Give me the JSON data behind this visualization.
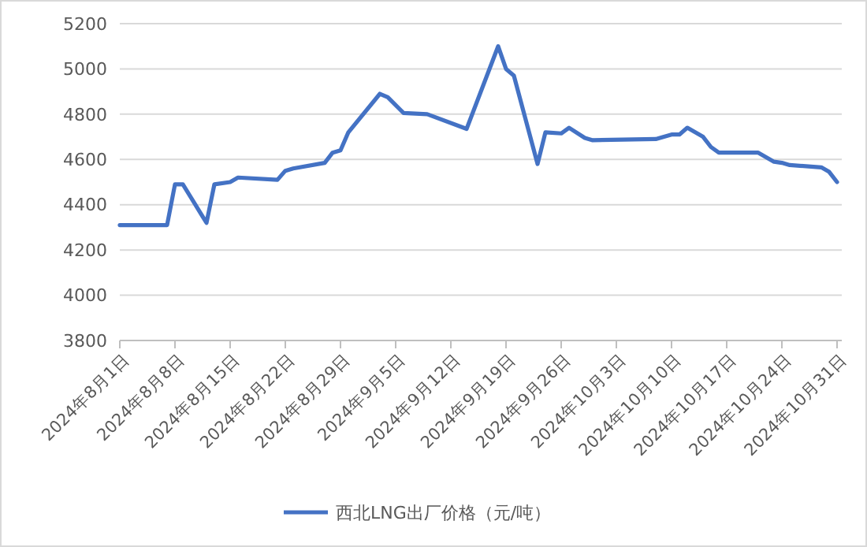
{
  "chart_data": {
    "type": "line",
    "x": [
      "2024-08-01",
      "2024-08-07",
      "2024-08-08",
      "2024-08-09",
      "2024-08-12",
      "2024-08-13",
      "2024-08-15",
      "2024-08-16",
      "2024-08-21",
      "2024-08-22",
      "2024-08-23",
      "2024-08-27",
      "2024-08-28",
      "2024-08-29",
      "2024-08-30",
      "2024-09-03",
      "2024-09-04",
      "2024-09-06",
      "2024-09-09",
      "2024-09-14",
      "2024-09-18",
      "2024-09-19",
      "2024-09-20",
      "2024-09-23",
      "2024-09-24",
      "2024-09-26",
      "2024-09-27",
      "2024-09-29",
      "2024-09-30",
      "2024-10-08",
      "2024-10-10",
      "2024-10-11",
      "2024-10-12",
      "2024-10-14",
      "2024-10-15",
      "2024-10-16",
      "2024-10-21",
      "2024-10-23",
      "2024-10-24",
      "2024-10-25",
      "2024-10-29",
      "2024-10-30",
      "2024-10-31"
    ],
    "series": [
      {
        "name": "西北LNG出厂价格（元/吨）",
        "color": "#4472c4",
        "values": [
          4310,
          4310,
          4490,
          4490,
          4320,
          4490,
          4500,
          4520,
          4510,
          4550,
          4560,
          4585,
          4630,
          4640,
          4720,
          4890,
          4875,
          4805,
          4800,
          4735,
          5100,
          5000,
          4970,
          4580,
          4720,
          4715,
          4740,
          4695,
          4685,
          4690,
          4710,
          4710,
          4740,
          4700,
          4655,
          4630,
          4630,
          4590,
          4585,
          4575,
          4565,
          4545,
          4500
        ]
      }
    ],
    "xlim": [
      "2024-08-01",
      "2024-10-31"
    ],
    "xticks": [
      {
        "value": "2024-08-01",
        "label": "2024年8月1日"
      },
      {
        "value": "2024-08-08",
        "label": "2024年8月8日"
      },
      {
        "value": "2024-08-15",
        "label": "2024年8月15日"
      },
      {
        "value": "2024-08-22",
        "label": "2024年8月22日"
      },
      {
        "value": "2024-08-29",
        "label": "2024年8月29日"
      },
      {
        "value": "2024-09-05",
        "label": "2024年9月5日"
      },
      {
        "value": "2024-09-12",
        "label": "2024年9月12日"
      },
      {
        "value": "2024-09-19",
        "label": "2024年9月19日"
      },
      {
        "value": "2024-09-26",
        "label": "2024年9月26日"
      },
      {
        "value": "2024-10-03",
        "label": "2024年10月3日"
      },
      {
        "value": "2024-10-10",
        "label": "2024年10月10日"
      },
      {
        "value": "2024-10-17",
        "label": "2024年10月17日"
      },
      {
        "value": "2024-10-24",
        "label": "2024年10月24日"
      },
      {
        "value": "2024-10-31",
        "label": "2024年10月31日"
      }
    ],
    "ylim": [
      3800,
      5200
    ],
    "yticks": [
      3800,
      4000,
      4200,
      4400,
      4600,
      4800,
      5000,
      5200
    ],
    "grid": "y",
    "legend": "bottom",
    "marker": "none",
    "line_style": "solid"
  }
}
